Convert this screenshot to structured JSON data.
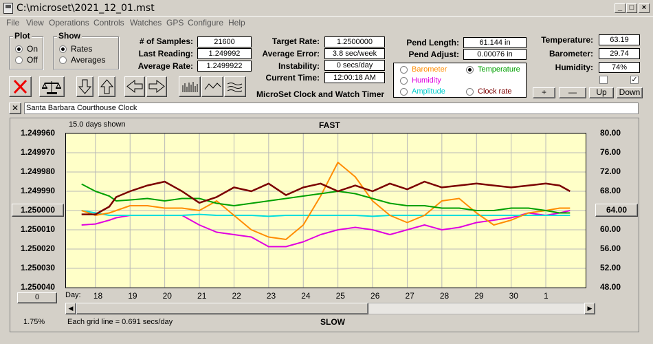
{
  "window": {
    "title": "C:\\microset\\2021_12_01.mst"
  },
  "menu": [
    "File",
    "View",
    "Operations",
    "Controls",
    "Watches",
    "GPS",
    "Configure",
    "Help"
  ],
  "plot": {
    "title": "Plot",
    "on": "On",
    "off": "Off"
  },
  "show": {
    "title": "Show",
    "rates": "Rates",
    "averages": "Averages"
  },
  "stats": {
    "samples_label": "# of Samples:",
    "samples": "21600",
    "last_label": "Last Reading:",
    "last": "1.249992",
    "avg_label": "Average Rate:",
    "avg": "1.2499922"
  },
  "rates": {
    "target_label": "Target Rate:",
    "target": "1.2500000",
    "error_label": "Average Error:",
    "error": "3.8 sec/week",
    "instab_label": "Instability:",
    "instab": "0 secs/day",
    "time_label": "Current Time:",
    "time": "12:00:18 AM",
    "app_name": "MicroSet Clock and Watch Timer"
  },
  "pend": {
    "length_label": "Pend Length:",
    "length": "61.144 in",
    "adjust_label": "Pend Adjust:",
    "adjust": "0.00076 in"
  },
  "env": {
    "temp_label": "Temperature:",
    "temp": "63.19",
    "baro_label": "Barometer:",
    "baro": "29.74",
    "hum_label": "Humidity:",
    "hum": "74%"
  },
  "series_select": {
    "barometer": "Barometer",
    "temperature": "Temperature",
    "humidity": "Humidity",
    "amplitude": "Amplitude",
    "clockrate": "Clock rate",
    "selected": "Temperature"
  },
  "adjust_buttons": {
    "plus": "+",
    "minus": "—",
    "up": "Up",
    "down": "Down"
  },
  "clock_name": "Santa Barbara Courthouse Clock",
  "colors": {
    "rate": "#7b0000",
    "barometer": "#ff8c00",
    "temperature": "#00a000",
    "humidity": "#e000e0",
    "amplitude": "#00dddd",
    "plot_bg": "#ffffc8"
  },
  "chart_data": {
    "type": "line",
    "top_label": "FAST",
    "bottom_label": "SLOW",
    "days_shown": "15.0 days shown",
    "grid_note": "Each grid line = 0.691 secs/day",
    "zoom": "1.75%",
    "x_label": "Day:",
    "x_ticks": [
      "18",
      "19",
      "20",
      "21",
      "22",
      "23",
      "24",
      "25",
      "26",
      "27",
      "28",
      "29",
      "30",
      "1"
    ],
    "y_left_ticks": [
      "1.249960",
      "1.249970",
      "1.249980",
      "1.249990",
      "1.250000",
      "1.250010",
      "1.250020",
      "1.250030",
      "1.250040"
    ],
    "y_left_ylim": [
      1.25004,
      1.24996
    ],
    "y_left_selected": "1.250000",
    "y_right_ticks": [
      "80.00",
      "76.00",
      "72.00",
      "68.00",
      "64.00",
      "60.00",
      "56.00",
      "52.00",
      "48.00"
    ],
    "y_right_selected": "64.00",
    "y_right_ylim": [
      48,
      80
    ],
    "bottom_left_box": "0",
    "x": [
      17.6,
      18.0,
      18.4,
      18.6,
      19.0,
      19.5,
      20.0,
      20.5,
      21.0,
      21.5,
      22.0,
      22.5,
      23.0,
      23.5,
      24.0,
      24.5,
      25.0,
      25.5,
      26.0,
      26.5,
      27.0,
      27.5,
      28.0,
      28.5,
      29.0,
      29.5,
      30.0,
      30.5,
      31.0,
      31.4,
      31.7
    ],
    "series": [
      {
        "name": "Clock rate",
        "axis": "left",
        "color": "#7b0000",
        "values": [
          1.250002,
          1.250002,
          1.249998,
          1.249993,
          1.24999,
          1.249987,
          1.249985,
          1.24999,
          1.249996,
          1.249993,
          1.249988,
          1.24999,
          1.249986,
          1.249992,
          1.249988,
          1.249986,
          1.24999,
          1.249987,
          1.24999,
          1.249986,
          1.249989,
          1.249985,
          1.249988,
          1.249987,
          1.249986,
          1.249987,
          1.249988,
          1.249987,
          1.249986,
          1.249987,
          1.24999
        ]
      },
      {
        "name": "Temperature",
        "axis": "right",
        "color": "#00a000",
        "values": [
          69.5,
          68.0,
          67.0,
          66.0,
          66.2,
          66.5,
          66.0,
          66.5,
          66.5,
          65.5,
          65.0,
          65.5,
          66.0,
          66.5,
          67.0,
          67.5,
          68.0,
          67.5,
          66.5,
          65.5,
          65.0,
          65.0,
          64.5,
          64.5,
          64.0,
          64.0,
          64.5,
          64.5,
          64.0,
          63.5,
          63.5
        ]
      },
      {
        "name": "Barometer",
        "axis": "right",
        "color": "#ff8c00",
        "values": [
          64.0,
          63.0,
          63.5,
          64.0,
          65.0,
          65.0,
          64.5,
          64.5,
          64.0,
          66.0,
          63.0,
          60.0,
          58.5,
          58.0,
          61.0,
          67.0,
          74.0,
          71.0,
          66.0,
          63.0,
          61.5,
          63.0,
          66.0,
          66.5,
          63.5,
          61.0,
          62.0,
          63.5,
          64.0,
          64.5,
          64.5
        ]
      },
      {
        "name": "Humidity",
        "axis": "right",
        "color": "#e000e0",
        "values": [
          61.0,
          61.2,
          62.0,
          62.5,
          63.0,
          63.0,
          63.0,
          63.0,
          61.0,
          59.5,
          59.0,
          58.5,
          56.5,
          56.5,
          57.5,
          59.0,
          60.0,
          60.5,
          60.0,
          59.0,
          60.0,
          61.0,
          60.0,
          60.5,
          61.5,
          62.0,
          62.5,
          63.5,
          63.0,
          63.5,
          64.0
        ]
      },
      {
        "name": "Amplitude",
        "axis": "right",
        "color": "#00dddd",
        "values": [
          64.0,
          63.5,
          63.0,
          63.0,
          63.0,
          63.0,
          63.0,
          63.0,
          63.2,
          63.0,
          63.0,
          63.0,
          62.8,
          63.0,
          63.0,
          63.0,
          63.0,
          63.0,
          62.8,
          63.0,
          63.0,
          63.0,
          63.0,
          63.0,
          63.0,
          63.0,
          63.0,
          63.0,
          63.0,
          63.0,
          63.0
        ]
      }
    ]
  }
}
